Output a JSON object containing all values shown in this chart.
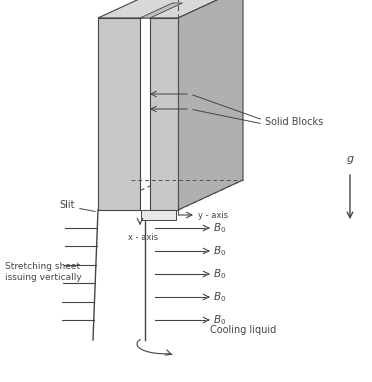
{
  "bg_color": "#ffffff",
  "lc": "#444444",
  "gray_front": "#c8c8c8",
  "gray_right": "#b0b0b0",
  "gray_top": "#d8d8d8",
  "gray_inner": "#bebebe",
  "dc": "#555555",
  "solid_blocks_label": "Solid Blocks",
  "slit_label": "Slit",
  "x_axis_label": "x - axis",
  "y_axis_label": "y - axis",
  "stretching_label": "Stretching sheet\nissuing vertically",
  "cooling_label": "Cooling liquid",
  "g_label": "g",
  "figw": 3.72,
  "figh": 3.82,
  "dpi": 100
}
